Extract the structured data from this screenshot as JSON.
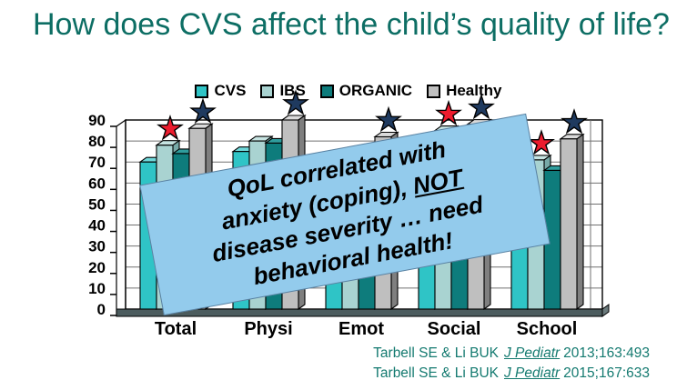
{
  "slide": {
    "title": "How does CVS affect the child’s quality of life?",
    "title_color": "#0D6E64",
    "background": "#ffffff"
  },
  "chart_data": {
    "type": "bar",
    "title": "",
    "xlabel": "",
    "ylabel": "",
    "categories": [
      "Total",
      "Physi",
      "Emot",
      "Social",
      "School"
    ],
    "series": [
      {
        "name": "CVS",
        "color": "#2FC4C6",
        "top": "#6FD8DA",
        "side": "#1D9698",
        "values": [
          70,
          75,
          66,
          71,
          61
        ]
      },
      {
        "name": "IBS",
        "color": "#A9D3D1",
        "top": "#C6E3E1",
        "side": "#77A9A7",
        "values": [
          78,
          80,
          71,
          85,
          71
        ]
      },
      {
        "name": "ORGANIC",
        "color": "#0E7C7C",
        "top": "#2F9D9D",
        "side": "#074F4F",
        "values": [
          74,
          79,
          69,
          77,
          66
        ]
      },
      {
        "name": "Healthy",
        "color": "#BFBFBF",
        "top": "#DADADA",
        "side": "#7F7F7F",
        "values": [
          86,
          90,
          82,
          88,
          81
        ]
      }
    ],
    "ylim": [
      0,
      90
    ],
    "ytick_interval": 10,
    "yticks": [
      0,
      10,
      20,
      30,
      40,
      50,
      60,
      70,
      80,
      90
    ],
    "grid": true,
    "legend_position": "top",
    "gridline_color": "#707070",
    "floor_color": "#4C5C5E",
    "stars": [
      {
        "category": "Total",
        "series": "IBS",
        "color": "#ED1C2E",
        "name": "red-star"
      },
      {
        "category": "Total",
        "series": "Healthy",
        "color": "#1F3A5F",
        "name": "navy-star"
      },
      {
        "category": "Physi",
        "series": "Healthy",
        "color": "#1F3A5F",
        "name": "navy-star"
      },
      {
        "category": "Emot",
        "series": "Healthy",
        "color": "#1F3A5F",
        "name": "navy-star"
      },
      {
        "category": "Social",
        "series": "IBS",
        "color": "#ED1C2E",
        "name": "red-star"
      },
      {
        "category": "Social",
        "series": "Healthy",
        "color": "#1F3A5F",
        "name": "navy-star"
      },
      {
        "category": "School",
        "series": "IBS",
        "color": "#ED1C2E",
        "name": "red-star"
      },
      {
        "category": "School",
        "series": "Healthy",
        "color": "#1F3A5F",
        "name": "navy-star"
      }
    ]
  },
  "callout": {
    "bg": "#93CBEC",
    "line1": "QoL correlated with",
    "line2_pre": "anxiety (coping), ",
    "line2_underlined": "NOT",
    "line3": "disease severity … need",
    "line4": "behavioral health!"
  },
  "citations": [
    {
      "authors": "Tarbell SE & Li BUK",
      "journal": "J Pediatr",
      "ref": "2013;163:493"
    },
    {
      "authors": "Tarbell SE & Li BUK",
      "journal": "J Pediatr",
      "ref": "2015;167:633"
    }
  ],
  "citation_color": "#147A70"
}
